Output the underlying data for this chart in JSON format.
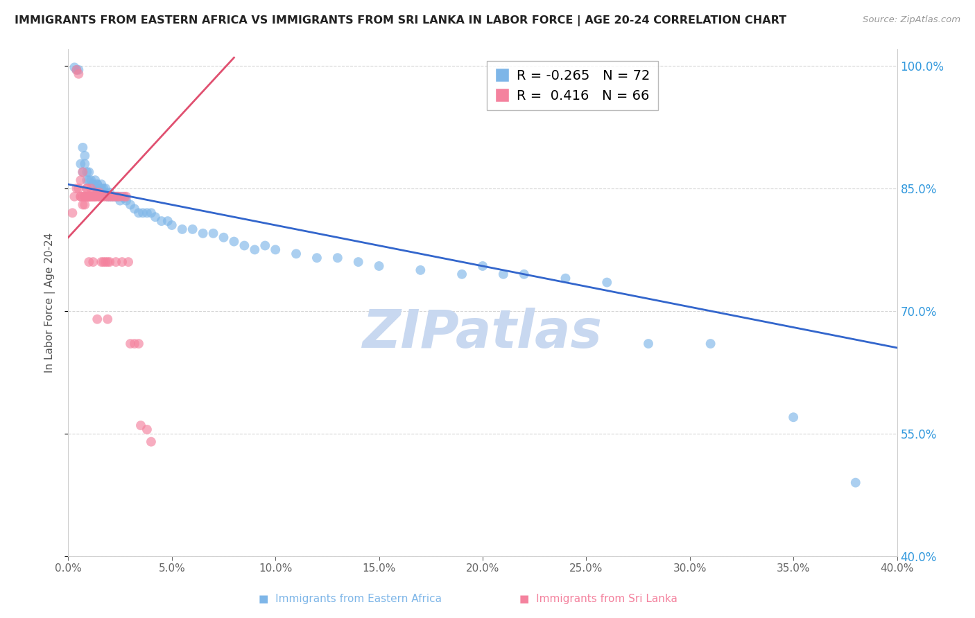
{
  "title": "IMMIGRANTS FROM EASTERN AFRICA VS IMMIGRANTS FROM SRI LANKA IN LABOR FORCE | AGE 20-24 CORRELATION CHART",
  "source": "Source: ZipAtlas.com",
  "xlabel": "",
  "ylabel": "In Labor Force | Age 20-24",
  "xlim": [
    0.0,
    0.4
  ],
  "ylim": [
    0.4,
    1.02
  ],
  "yticks": [
    0.4,
    0.55,
    0.7,
    0.85,
    1.0
  ],
  "xticks": [
    0.0,
    0.05,
    0.1,
    0.15,
    0.2,
    0.25,
    0.3,
    0.35,
    0.4
  ],
  "r_eastern": -0.265,
  "n_eastern": 72,
  "r_srilanka": 0.416,
  "n_srilanka": 66,
  "color_eastern": "#7EB6E8",
  "color_srilanka": "#F4829E",
  "line_color_eastern": "#3366CC",
  "line_color_srilanka": "#E05070",
  "watermark": "ZIPatlas",
  "watermark_color": "#C8D8F0",
  "eastern_africa_x": [
    0.003,
    0.004,
    0.005,
    0.006,
    0.007,
    0.007,
    0.008,
    0.008,
    0.009,
    0.009,
    0.01,
    0.01,
    0.011,
    0.012,
    0.012,
    0.013,
    0.014,
    0.014,
    0.015,
    0.016,
    0.016,
    0.017,
    0.017,
    0.018,
    0.018,
    0.019,
    0.02,
    0.02,
    0.021,
    0.022,
    0.023,
    0.024,
    0.025,
    0.026,
    0.027,
    0.028,
    0.03,
    0.032,
    0.034,
    0.036,
    0.038,
    0.04,
    0.042,
    0.045,
    0.048,
    0.05,
    0.055,
    0.06,
    0.065,
    0.07,
    0.075,
    0.08,
    0.085,
    0.09,
    0.095,
    0.1,
    0.11,
    0.12,
    0.13,
    0.14,
    0.15,
    0.17,
    0.19,
    0.2,
    0.21,
    0.22,
    0.24,
    0.26,
    0.28,
    0.31,
    0.35,
    0.38
  ],
  "eastern_africa_y": [
    0.998,
    0.995,
    0.995,
    0.88,
    0.87,
    0.9,
    0.88,
    0.89,
    0.87,
    0.86,
    0.86,
    0.87,
    0.86,
    0.855,
    0.855,
    0.86,
    0.855,
    0.855,
    0.85,
    0.855,
    0.85,
    0.85,
    0.845,
    0.85,
    0.845,
    0.84,
    0.845,
    0.84,
    0.84,
    0.84,
    0.84,
    0.84,
    0.835,
    0.84,
    0.838,
    0.835,
    0.83,
    0.825,
    0.82,
    0.82,
    0.82,
    0.82,
    0.815,
    0.81,
    0.81,
    0.805,
    0.8,
    0.8,
    0.795,
    0.795,
    0.79,
    0.785,
    0.78,
    0.775,
    0.78,
    0.775,
    0.77,
    0.765,
    0.765,
    0.76,
    0.755,
    0.75,
    0.745,
    0.755,
    0.745,
    0.745,
    0.74,
    0.735,
    0.66,
    0.66,
    0.57,
    0.49
  ],
  "srilanka_x": [
    0.002,
    0.003,
    0.004,
    0.004,
    0.005,
    0.005,
    0.006,
    0.006,
    0.006,
    0.007,
    0.007,
    0.007,
    0.008,
    0.008,
    0.008,
    0.009,
    0.009,
    0.009,
    0.009,
    0.01,
    0.01,
    0.01,
    0.01,
    0.011,
    0.011,
    0.011,
    0.012,
    0.012,
    0.012,
    0.013,
    0.013,
    0.013,
    0.014,
    0.014,
    0.014,
    0.015,
    0.015,
    0.015,
    0.016,
    0.016,
    0.016,
    0.017,
    0.017,
    0.018,
    0.018,
    0.019,
    0.019,
    0.019,
    0.02,
    0.02,
    0.021,
    0.022,
    0.023,
    0.023,
    0.024,
    0.025,
    0.026,
    0.027,
    0.028,
    0.029,
    0.03,
    0.032,
    0.034,
    0.035,
    0.038,
    0.04
  ],
  "srilanka_y": [
    0.82,
    0.84,
    0.85,
    0.995,
    0.99,
    0.85,
    0.84,
    0.84,
    0.86,
    0.83,
    0.84,
    0.87,
    0.84,
    0.83,
    0.84,
    0.84,
    0.84,
    0.85,
    0.85,
    0.84,
    0.84,
    0.84,
    0.76,
    0.84,
    0.84,
    0.85,
    0.84,
    0.84,
    0.76,
    0.84,
    0.84,
    0.845,
    0.84,
    0.845,
    0.69,
    0.84,
    0.84,
    0.845,
    0.84,
    0.84,
    0.76,
    0.84,
    0.76,
    0.84,
    0.76,
    0.84,
    0.76,
    0.69,
    0.84,
    0.76,
    0.84,
    0.84,
    0.84,
    0.76,
    0.84,
    0.84,
    0.76,
    0.84,
    0.84,
    0.76,
    0.66,
    0.66,
    0.66,
    0.56,
    0.555,
    0.54
  ]
}
